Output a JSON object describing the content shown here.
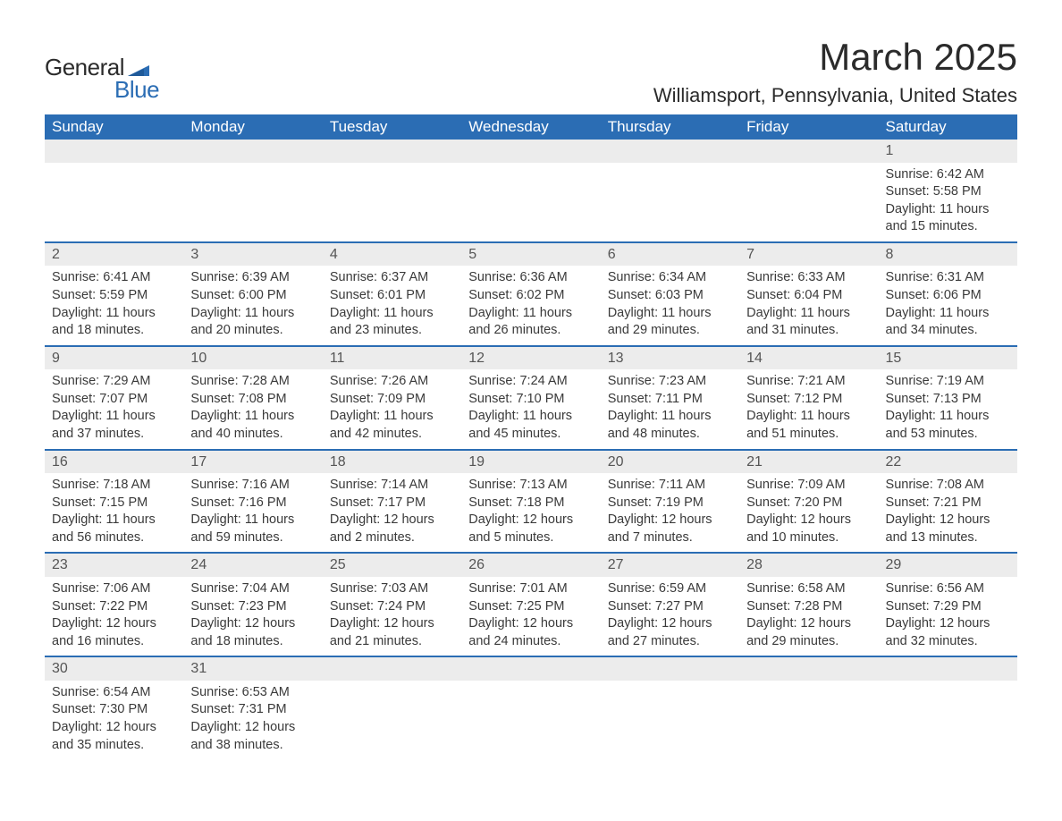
{
  "brand": {
    "word1": "General",
    "word2": "Blue",
    "wing_color": "#2b6db4",
    "text_color": "#2b2b2b"
  },
  "title": "March 2025",
  "location": "Williamsport, Pennsylvania, United States",
  "styling": {
    "header_bg": "#2b6db4",
    "header_fg": "#ffffff",
    "daynum_bg": "#ececec",
    "daynum_fg": "#555555",
    "row_divider": "#2b6db4",
    "body_text": "#3a3a3a",
    "page_bg": "#ffffff",
    "title_fontsize": 42,
    "location_fontsize": 22,
    "header_fontsize": 17,
    "cell_fontsize": 14.5
  },
  "weekdays": [
    "Sunday",
    "Monday",
    "Tuesday",
    "Wednesday",
    "Thursday",
    "Friday",
    "Saturday"
  ],
  "weeks": [
    [
      null,
      null,
      null,
      null,
      null,
      null,
      {
        "d": "1",
        "sr": "Sunrise: 6:42 AM",
        "ss": "Sunset: 5:58 PM",
        "dl1": "Daylight: 11 hours",
        "dl2": "and 15 minutes."
      }
    ],
    [
      {
        "d": "2",
        "sr": "Sunrise: 6:41 AM",
        "ss": "Sunset: 5:59 PM",
        "dl1": "Daylight: 11 hours",
        "dl2": "and 18 minutes."
      },
      {
        "d": "3",
        "sr": "Sunrise: 6:39 AM",
        "ss": "Sunset: 6:00 PM",
        "dl1": "Daylight: 11 hours",
        "dl2": "and 20 minutes."
      },
      {
        "d": "4",
        "sr": "Sunrise: 6:37 AM",
        "ss": "Sunset: 6:01 PM",
        "dl1": "Daylight: 11 hours",
        "dl2": "and 23 minutes."
      },
      {
        "d": "5",
        "sr": "Sunrise: 6:36 AM",
        "ss": "Sunset: 6:02 PM",
        "dl1": "Daylight: 11 hours",
        "dl2": "and 26 minutes."
      },
      {
        "d": "6",
        "sr": "Sunrise: 6:34 AM",
        "ss": "Sunset: 6:03 PM",
        "dl1": "Daylight: 11 hours",
        "dl2": "and 29 minutes."
      },
      {
        "d": "7",
        "sr": "Sunrise: 6:33 AM",
        "ss": "Sunset: 6:04 PM",
        "dl1": "Daylight: 11 hours",
        "dl2": "and 31 minutes."
      },
      {
        "d": "8",
        "sr": "Sunrise: 6:31 AM",
        "ss": "Sunset: 6:06 PM",
        "dl1": "Daylight: 11 hours",
        "dl2": "and 34 minutes."
      }
    ],
    [
      {
        "d": "9",
        "sr": "Sunrise: 7:29 AM",
        "ss": "Sunset: 7:07 PM",
        "dl1": "Daylight: 11 hours",
        "dl2": "and 37 minutes."
      },
      {
        "d": "10",
        "sr": "Sunrise: 7:28 AM",
        "ss": "Sunset: 7:08 PM",
        "dl1": "Daylight: 11 hours",
        "dl2": "and 40 minutes."
      },
      {
        "d": "11",
        "sr": "Sunrise: 7:26 AM",
        "ss": "Sunset: 7:09 PM",
        "dl1": "Daylight: 11 hours",
        "dl2": "and 42 minutes."
      },
      {
        "d": "12",
        "sr": "Sunrise: 7:24 AM",
        "ss": "Sunset: 7:10 PM",
        "dl1": "Daylight: 11 hours",
        "dl2": "and 45 minutes."
      },
      {
        "d": "13",
        "sr": "Sunrise: 7:23 AM",
        "ss": "Sunset: 7:11 PM",
        "dl1": "Daylight: 11 hours",
        "dl2": "and 48 minutes."
      },
      {
        "d": "14",
        "sr": "Sunrise: 7:21 AM",
        "ss": "Sunset: 7:12 PM",
        "dl1": "Daylight: 11 hours",
        "dl2": "and 51 minutes."
      },
      {
        "d": "15",
        "sr": "Sunrise: 7:19 AM",
        "ss": "Sunset: 7:13 PM",
        "dl1": "Daylight: 11 hours",
        "dl2": "and 53 minutes."
      }
    ],
    [
      {
        "d": "16",
        "sr": "Sunrise: 7:18 AM",
        "ss": "Sunset: 7:15 PM",
        "dl1": "Daylight: 11 hours",
        "dl2": "and 56 minutes."
      },
      {
        "d": "17",
        "sr": "Sunrise: 7:16 AM",
        "ss": "Sunset: 7:16 PM",
        "dl1": "Daylight: 11 hours",
        "dl2": "and 59 minutes."
      },
      {
        "d": "18",
        "sr": "Sunrise: 7:14 AM",
        "ss": "Sunset: 7:17 PM",
        "dl1": "Daylight: 12 hours",
        "dl2": "and 2 minutes."
      },
      {
        "d": "19",
        "sr": "Sunrise: 7:13 AM",
        "ss": "Sunset: 7:18 PM",
        "dl1": "Daylight: 12 hours",
        "dl2": "and 5 minutes."
      },
      {
        "d": "20",
        "sr": "Sunrise: 7:11 AM",
        "ss": "Sunset: 7:19 PM",
        "dl1": "Daylight: 12 hours",
        "dl2": "and 7 minutes."
      },
      {
        "d": "21",
        "sr": "Sunrise: 7:09 AM",
        "ss": "Sunset: 7:20 PM",
        "dl1": "Daylight: 12 hours",
        "dl2": "and 10 minutes."
      },
      {
        "d": "22",
        "sr": "Sunrise: 7:08 AM",
        "ss": "Sunset: 7:21 PM",
        "dl1": "Daylight: 12 hours",
        "dl2": "and 13 minutes."
      }
    ],
    [
      {
        "d": "23",
        "sr": "Sunrise: 7:06 AM",
        "ss": "Sunset: 7:22 PM",
        "dl1": "Daylight: 12 hours",
        "dl2": "and 16 minutes."
      },
      {
        "d": "24",
        "sr": "Sunrise: 7:04 AM",
        "ss": "Sunset: 7:23 PM",
        "dl1": "Daylight: 12 hours",
        "dl2": "and 18 minutes."
      },
      {
        "d": "25",
        "sr": "Sunrise: 7:03 AM",
        "ss": "Sunset: 7:24 PM",
        "dl1": "Daylight: 12 hours",
        "dl2": "and 21 minutes."
      },
      {
        "d": "26",
        "sr": "Sunrise: 7:01 AM",
        "ss": "Sunset: 7:25 PM",
        "dl1": "Daylight: 12 hours",
        "dl2": "and 24 minutes."
      },
      {
        "d": "27",
        "sr": "Sunrise: 6:59 AM",
        "ss": "Sunset: 7:27 PM",
        "dl1": "Daylight: 12 hours",
        "dl2": "and 27 minutes."
      },
      {
        "d": "28",
        "sr": "Sunrise: 6:58 AM",
        "ss": "Sunset: 7:28 PM",
        "dl1": "Daylight: 12 hours",
        "dl2": "and 29 minutes."
      },
      {
        "d": "29",
        "sr": "Sunrise: 6:56 AM",
        "ss": "Sunset: 7:29 PM",
        "dl1": "Daylight: 12 hours",
        "dl2": "and 32 minutes."
      }
    ],
    [
      {
        "d": "30",
        "sr": "Sunrise: 6:54 AM",
        "ss": "Sunset: 7:30 PM",
        "dl1": "Daylight: 12 hours",
        "dl2": "and 35 minutes."
      },
      {
        "d": "31",
        "sr": "Sunrise: 6:53 AM",
        "ss": "Sunset: 7:31 PM",
        "dl1": "Daylight: 12 hours",
        "dl2": "and 38 minutes."
      },
      null,
      null,
      null,
      null,
      null
    ]
  ]
}
